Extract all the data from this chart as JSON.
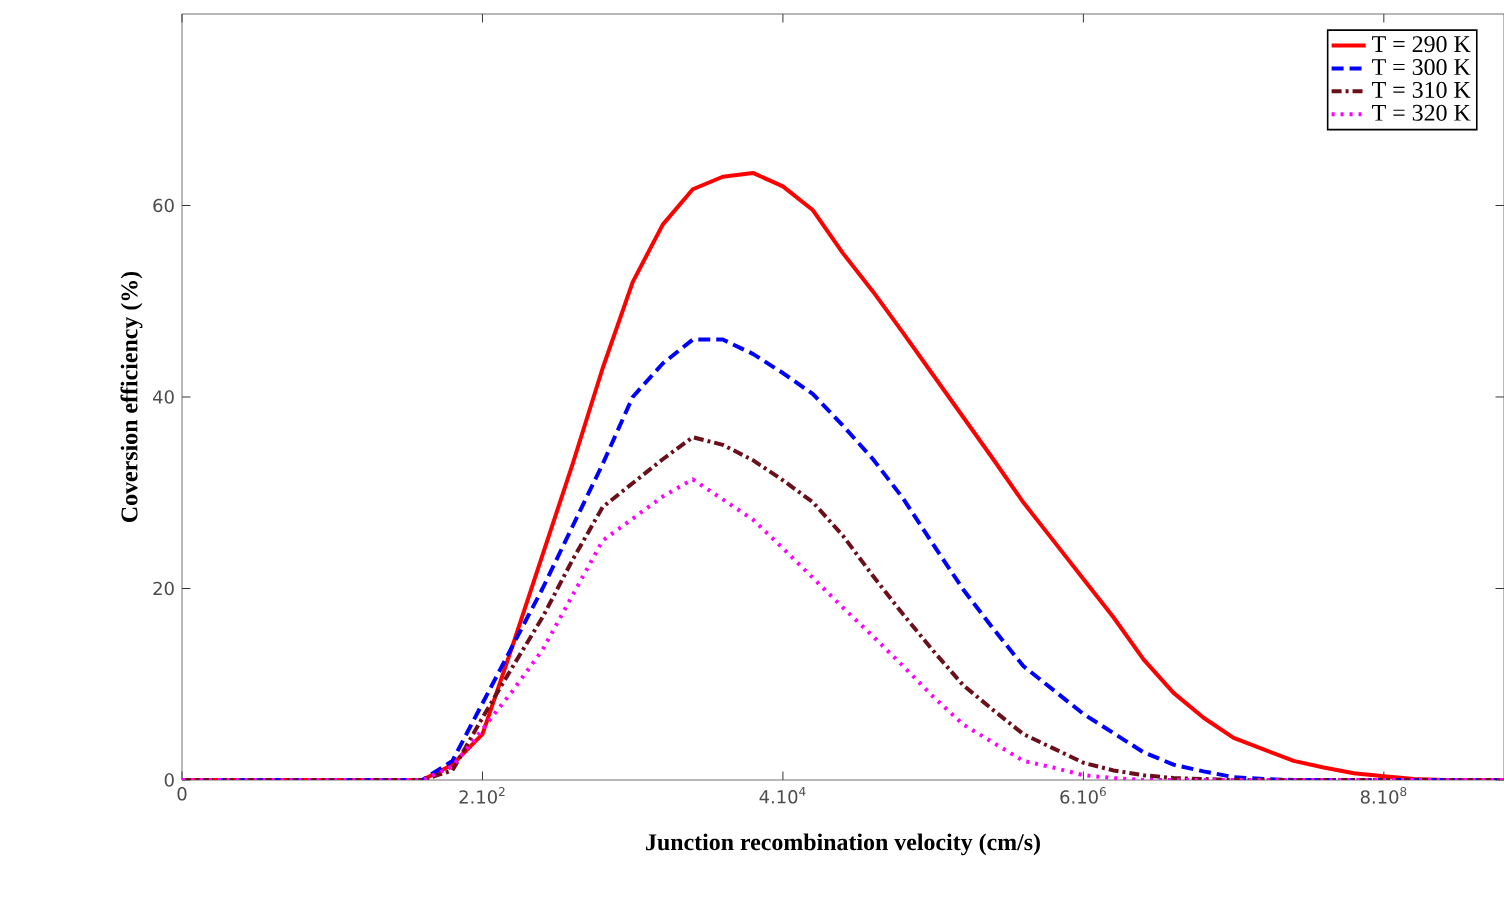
{
  "chart_data": {
    "type": "line",
    "xlabel": "Junction recombination velocity (cm/s)",
    "ylabel": "Coversion efficiency (%)",
    "categories": [
      "0",
      null,
      null,
      null,
      null,
      null,
      null,
      null,
      null,
      null,
      "2.10$^{2}$",
      null,
      null,
      null,
      null,
      null,
      null,
      null,
      null,
      null,
      "4.10$^{4}$",
      null,
      null,
      null,
      null,
      null,
      null,
      null,
      null,
      null,
      "6.10$^{6}$",
      null,
      null,
      null,
      null,
      null,
      null,
      null,
      null,
      null,
      "8.10$^{8}$",
      null,
      null,
      null,
      null
    ],
    "ylim": [
      0,
      80
    ],
    "yticks": [
      0,
      20,
      40,
      60
    ],
    "legend": "top right",
    "grid": false,
    "marker": "none",
    "series": [
      {
        "name": "T = 290 K",
        "color": "#ff0000",
        "line_style": "solid",
        "values": [
          0,
          0,
          0,
          0,
          0,
          0,
          0,
          0,
          0,
          1.6,
          4.8,
          14,
          23.5,
          33,
          43,
          52,
          58,
          61.7,
          63,
          63.4,
          62,
          59.5,
          55,
          51,
          46.7,
          42.3,
          37.9,
          33.5,
          29,
          25,
          21,
          17,
          12.6,
          9.1,
          6.5,
          4.4,
          3.2,
          2,
          1.3,
          0.7,
          0.4,
          0.1,
          0,
          0,
          0
        ]
      },
      {
        "name": "T = 300 K",
        "color": "#0000ff",
        "line_style": "dashed",
        "values": [
          0,
          0,
          0,
          0,
          0,
          0,
          0,
          0,
          0,
          2,
          8,
          14,
          20,
          26.5,
          33,
          40,
          43.5,
          46,
          46,
          44.5,
          42.5,
          40.3,
          37,
          33.5,
          29.4,
          24.6,
          19.9,
          15.8,
          11.9,
          9.4,
          6.9,
          4.9,
          2.9,
          1.6,
          0.9,
          0.3,
          0.1,
          0,
          0,
          0,
          0,
          0,
          0,
          0,
          0
        ]
      },
      {
        "name": "T = 310 K",
        "color": "#6b0f1a",
        "line_style": "dashdot",
        "values": [
          0,
          0,
          0,
          0,
          0,
          0,
          0,
          0,
          0,
          1,
          6.5,
          11.8,
          17,
          23,
          28.5,
          31,
          33.5,
          35.8,
          35,
          33.4,
          31.3,
          29,
          25.5,
          21.3,
          17.3,
          13.5,
          9.9,
          7.3,
          4.8,
          3.3,
          1.8,
          1,
          0.5,
          0.2,
          0.1,
          0,
          0,
          0,
          0,
          0,
          0,
          0,
          0,
          0,
          0
        ]
      },
      {
        "name": "T = 320 K",
        "color": "#ff00ff",
        "line_style": "dotted",
        "values": [
          0,
          0,
          0,
          0,
          0,
          0,
          0,
          0,
          0,
          1.4,
          5.3,
          9.3,
          13.6,
          19.3,
          25,
          27.3,
          29.6,
          31.4,
          29.3,
          27.2,
          24.2,
          21.1,
          18,
          15,
          11.9,
          8.7,
          5.8,
          3.9,
          2,
          1.3,
          0.5,
          0.2,
          0,
          0,
          0,
          0,
          0,
          0,
          0,
          0,
          0,
          0,
          0,
          0,
          0
        ]
      }
    ]
  }
}
